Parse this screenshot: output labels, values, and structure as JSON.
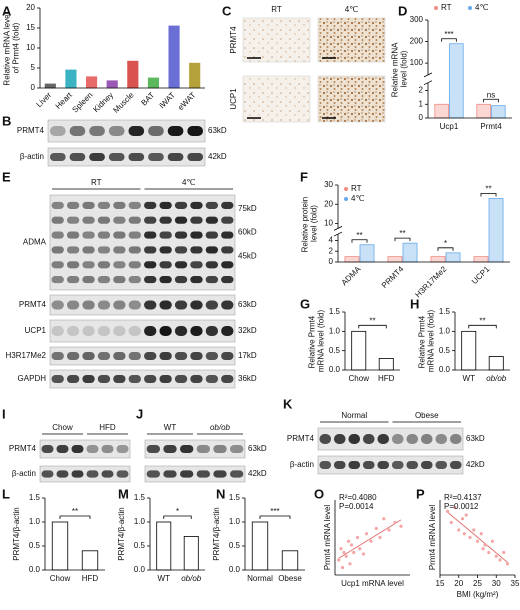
{
  "panel_labels": [
    "A",
    "B",
    "C",
    "D",
    "E",
    "F",
    "G",
    "H",
    "I",
    "J",
    "K",
    "L",
    "M",
    "N",
    "O",
    "P"
  ],
  "chart_data": [
    {
      "type": "bar",
      "ylabel": "Relative mRNA level of Prmt4 (fold)",
      "categories": [
        "Liver",
        "Heart",
        "Spleen",
        "Kidney",
        "Muscle",
        "BAT",
        "iWAT",
        "eWAT"
      ],
      "values": [
        1,
        4.5,
        2.8,
        1.8,
        6.7,
        2.5,
        15.5,
        6.2
      ],
      "colors": [
        "#666666",
        "#3bb3c3",
        "#e86a6a",
        "#9b59b6",
        "#d9534f",
        "#5cb85c",
        "#6a6fd6",
        "#b5a13a"
      ],
      "ylim": [
        0,
        20
      ],
      "yticks": [
        0,
        5,
        10,
        15,
        20
      ],
      "xlabel_rotation": 45
    },
    {
      "type": "bar",
      "ylabel": "Relative mRNA level (fold)",
      "categories": [
        "Ucp1",
        "Prmt4"
      ],
      "series": [
        {
          "name": "RT",
          "color": "#f28b82",
          "values": [
            1,
            1
          ]
        },
        {
          "name": "4℃",
          "color": "#64a8e8",
          "values": [
            190,
            0.9
          ]
        }
      ],
      "ylim": [
        0,
        300
      ],
      "yticks": [
        0,
        1,
        2,
        100,
        200,
        300
      ],
      "ybreak": [
        2.5,
        50
      ],
      "legend": "top",
      "annotations": [
        {
          "text": "***",
          "category": "Ucp1"
        },
        {
          "text": "ns",
          "category": "Prmt4"
        }
      ]
    },
    {
      "type": "bar",
      "ylabel": "Relative protein level (fold)",
      "categories": [
        "ADMA",
        "PRMT4",
        "H3R17Me2",
        "UCP1"
      ],
      "series": [
        {
          "name": "RT",
          "color": "#f28b82",
          "values": [
            1,
            1,
            1,
            1
          ]
        },
        {
          "name": "4℃",
          "color": "#64a8e8",
          "values": [
            3.2,
            3.5,
            1.7,
            23
          ]
        }
      ],
      "ylim": [
        0,
        30
      ],
      "yticks": [
        0,
        2,
        4,
        10,
        20,
        30
      ],
      "ybreak": [
        5,
        8
      ],
      "legend": "upper left",
      "xlabel_rotation": 45,
      "annotations": [
        {
          "text": "**",
          "category": "ADMA"
        },
        {
          "text": "**",
          "category": "PRMT4"
        },
        {
          "text": "*",
          "category": "H3R17Me2"
        },
        {
          "text": "**",
          "category": "UCP1"
        }
      ]
    },
    {
      "type": "bar",
      "ylabel": "Relative Prmt4 mRNA level (fold)",
      "categories": [
        "Chow",
        "HFD"
      ],
      "values": [
        1.0,
        0.3
      ],
      "color": "#ffffff",
      "ylim": [
        0,
        1.5
      ],
      "yticks": [
        {
          "value": 0,
          "label": "0.0"
        },
        0.5,
        {
          "value": 1,
          "label": "1.0"
        },
        1.5
      ],
      "annotations": [
        {
          "text": "**"
        }
      ]
    },
    {
      "type": "bar",
      "ylabel": "Relative Prmt4 mRNA level (fold)",
      "categories": [
        "WT",
        "ob/ob"
      ],
      "values": [
        1.0,
        0.35
      ],
      "color": "#ffffff",
      "ylim": [
        0,
        1.5
      ],
      "yticks": [
        {
          "value": 0,
          "label": "0.0"
        },
        0.5,
        {
          "value": 1,
          "label": "1.0"
        },
        1.5
      ],
      "annotations": [
        {
          "text": "**"
        }
      ]
    },
    {
      "type": "bar",
      "ylabel": "PRMT4/β-actin",
      "categories": [
        "Chow",
        "HFD"
      ],
      "values": [
        1.0,
        0.4
      ],
      "color": "#ffffff",
      "ylim": [
        0,
        1.5
      ],
      "yticks": [
        {
          "value": 0,
          "label": "0.0"
        },
        0.5,
        {
          "value": 1,
          "label": "1.0"
        },
        1.5
      ],
      "annotations": [
        {
          "text": "**"
        }
      ]
    },
    {
      "type": "bar",
      "ylabel": "PRMT4/β-actin",
      "categories": [
        "WT",
        "ob/ob"
      ],
      "values": [
        1.0,
        0.7
      ],
      "color": "#ffffff",
      "ylim": [
        0,
        1.5
      ],
      "yticks": [
        {
          "value": 0,
          "label": "0.0"
        },
        0.5,
        {
          "value": 1,
          "label": "1.0"
        },
        1.5
      ],
      "annotations": [
        {
          "text": "*"
        }
      ]
    },
    {
      "type": "bar",
      "ylabel": "PRMT4/β-actin",
      "categories": [
        "Normal",
        "Obese"
      ],
      "values": [
        1.0,
        0.4
      ],
      "color": "#ffffff",
      "ylim": [
        0,
        1.5
      ],
      "yticks": [
        {
          "value": 0,
          "label": "0.0"
        },
        0.5,
        {
          "value": 1,
          "label": "1.0"
        },
        1.5
      ],
      "annotations": [
        {
          "text": "***"
        }
      ]
    },
    {
      "type": "scatter",
      "xlabel": "Ucp1 mRNA level",
      "ylabel": "Prmt4 mRNA level",
      "annotations": [
        "R²=0.4080",
        "P=0.0014"
      ],
      "color": "#f4a6a6",
      "x": [
        0.05,
        0.08,
        0.1,
        0.12,
        0.15,
        0.18,
        0.2,
        0.22,
        0.25,
        0.3,
        0.33,
        0.38,
        0.42,
        0.48,
        0.55,
        0.6,
        0.65,
        0.72,
        0.8,
        0.88
      ],
      "y": [
        0.2,
        0.35,
        0.1,
        0.3,
        0.25,
        0.45,
        0.15,
        0.4,
        0.3,
        0.5,
        0.35,
        0.28,
        0.55,
        0.45,
        0.62,
        0.5,
        0.75,
        0.6,
        0.7,
        0.65
      ],
      "xlim": [
        0,
        1
      ],
      "ylim": [
        0,
        1
      ]
    },
    {
      "type": "scatter",
      "xlabel": "BMI (kg/m²)",
      "ylabel": "Prmt4 mRNA level",
      "annotations": [
        "R²=0.4137",
        "P=0.0012"
      ],
      "color": "#f4a6a6",
      "x": [
        17,
        18,
        19,
        20,
        21,
        21.5,
        22,
        23,
        24,
        25,
        26,
        26.5,
        27,
        28,
        29,
        30,
        31,
        32,
        33
      ],
      "y": [
        0.85,
        0.7,
        0.9,
        0.6,
        0.75,
        0.55,
        0.8,
        0.5,
        0.6,
        0.45,
        0.55,
        0.35,
        0.4,
        0.3,
        0.45,
        0.25,
        0.2,
        0.3,
        0.15
      ],
      "xlim": [
        15,
        35
      ],
      "xticks": [
        15,
        20,
        25,
        30,
        35
      ],
      "ylim": [
        0,
        1
      ]
    }
  ],
  "ihc": {
    "columns": [
      "RT",
      "4℃"
    ],
    "rows": [
      "PRMT4",
      "UCP1"
    ]
  },
  "blots": [
    {
      "rows": [
        {
          "label": "PRMT4",
          "sizes": [
            "63kD"
          ]
        },
        {
          "label": "β-actin",
          "sizes": [
            "42kD"
          ]
        }
      ]
    },
    {
      "groups": [
        "RT",
        "4℃"
      ],
      "rows": [
        {
          "label": "ADMA",
          "sizes": [
            "75kD",
            "60kD",
            "45kD"
          ]
        },
        {
          "label": "PRMT4",
          "sizes": [
            "63kD"
          ]
        },
        {
          "label": "UCP1",
          "sizes": [
            "32kD"
          ]
        },
        {
          "label": "H3R17Me2",
          "sizes": [
            "17kD"
          ]
        },
        {
          "label": "GAPDH",
          "sizes": [
            "36kD"
          ]
        }
      ]
    },
    {
      "groups": [
        "Chow",
        "HFD"
      ],
      "rows": [
        {
          "label": "PRMT4"
        },
        {
          "label": "β-actin"
        }
      ]
    },
    {
      "groups": [
        "WT",
        "ob/ob"
      ],
      "rows": [
        {
          "sizes": [
            "63kD"
          ]
        },
        {
          "sizes": [
            "42kD"
          ]
        }
      ]
    },
    {
      "groups": [
        "Normal",
        "Obese"
      ],
      "rows": [
        {
          "label": "PRMT4",
          "sizes": [
            "63kD"
          ]
        },
        {
          "label": "β-actin",
          "sizes": [
            "42kD"
          ]
        }
      ]
    }
  ]
}
